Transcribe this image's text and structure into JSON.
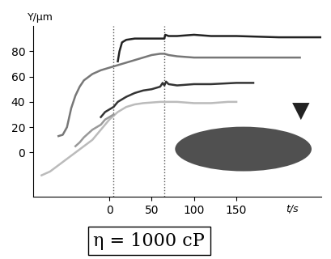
{
  "chart_data": {
    "type": "line",
    "x_label": "t/s",
    "y_label": "Y/μm",
    "annotation": "η = 1000 cP",
    "xlim": [
      -90,
      250
    ],
    "xticks": [
      0,
      50,
      100,
      150
    ],
    "ylim": [
      -35,
      100
    ],
    "yticks": [
      0,
      20,
      40,
      60,
      80
    ],
    "grid": false,
    "vlines": [
      5,
      65
    ],
    "series": [
      {
        "color": "#222222",
        "x": [
          10,
          12,
          15,
          20,
          30,
          50,
          65,
          66,
          70,
          80,
          100,
          120,
          150,
          200,
          250
        ],
        "values": [
          72,
          80,
          87,
          89,
          90,
          90,
          90,
          93,
          92,
          92,
          93,
          92,
          92,
          91,
          91
        ]
      },
      {
        "color": "#777777",
        "x": [
          -60,
          -55,
          -50,
          -45,
          -40,
          -35,
          -30,
          -20,
          -10,
          0,
          10,
          20,
          30,
          40,
          50,
          60,
          65,
          70,
          80,
          100,
          150,
          200,
          225
        ],
        "values": [
          13,
          14,
          20,
          35,
          45,
          52,
          57,
          62,
          65,
          67,
          69,
          71,
          73,
          75,
          77,
          78,
          78,
          77,
          76,
          75,
          75,
          75,
          75
        ]
      },
      {
        "color": "#333333",
        "x": [
          -10,
          -5,
          0,
          5,
          10,
          20,
          30,
          40,
          50,
          60,
          63,
          65,
          67,
          70,
          80,
          100,
          120,
          150,
          170
        ],
        "values": [
          28,
          32,
          34,
          36,
          40,
          44,
          47,
          49,
          50,
          52,
          55,
          53,
          56,
          54,
          53,
          54,
          54,
          55,
          55
        ]
      },
      {
        "color": "#bbbbbb",
        "x": [
          -80,
          -70,
          -60,
          -50,
          -40,
          -30,
          -20,
          -10,
          0,
          10,
          20,
          30,
          40,
          60,
          80,
          100,
          120,
          140,
          150
        ],
        "values": [
          -18,
          -15,
          -10,
          -5,
          0,
          5,
          10,
          18,
          26,
          32,
          36,
          38,
          39,
          40,
          40,
          39,
          39,
          40,
          40
        ]
      },
      {
        "color": "#999999",
        "x": [
          -40,
          -35,
          -30,
          -25,
          -20,
          -15,
          -10,
          -5,
          0,
          5
        ],
        "values": [
          5,
          8,
          12,
          15,
          18,
          20,
          22,
          26,
          28,
          30
        ]
      }
    ]
  }
}
